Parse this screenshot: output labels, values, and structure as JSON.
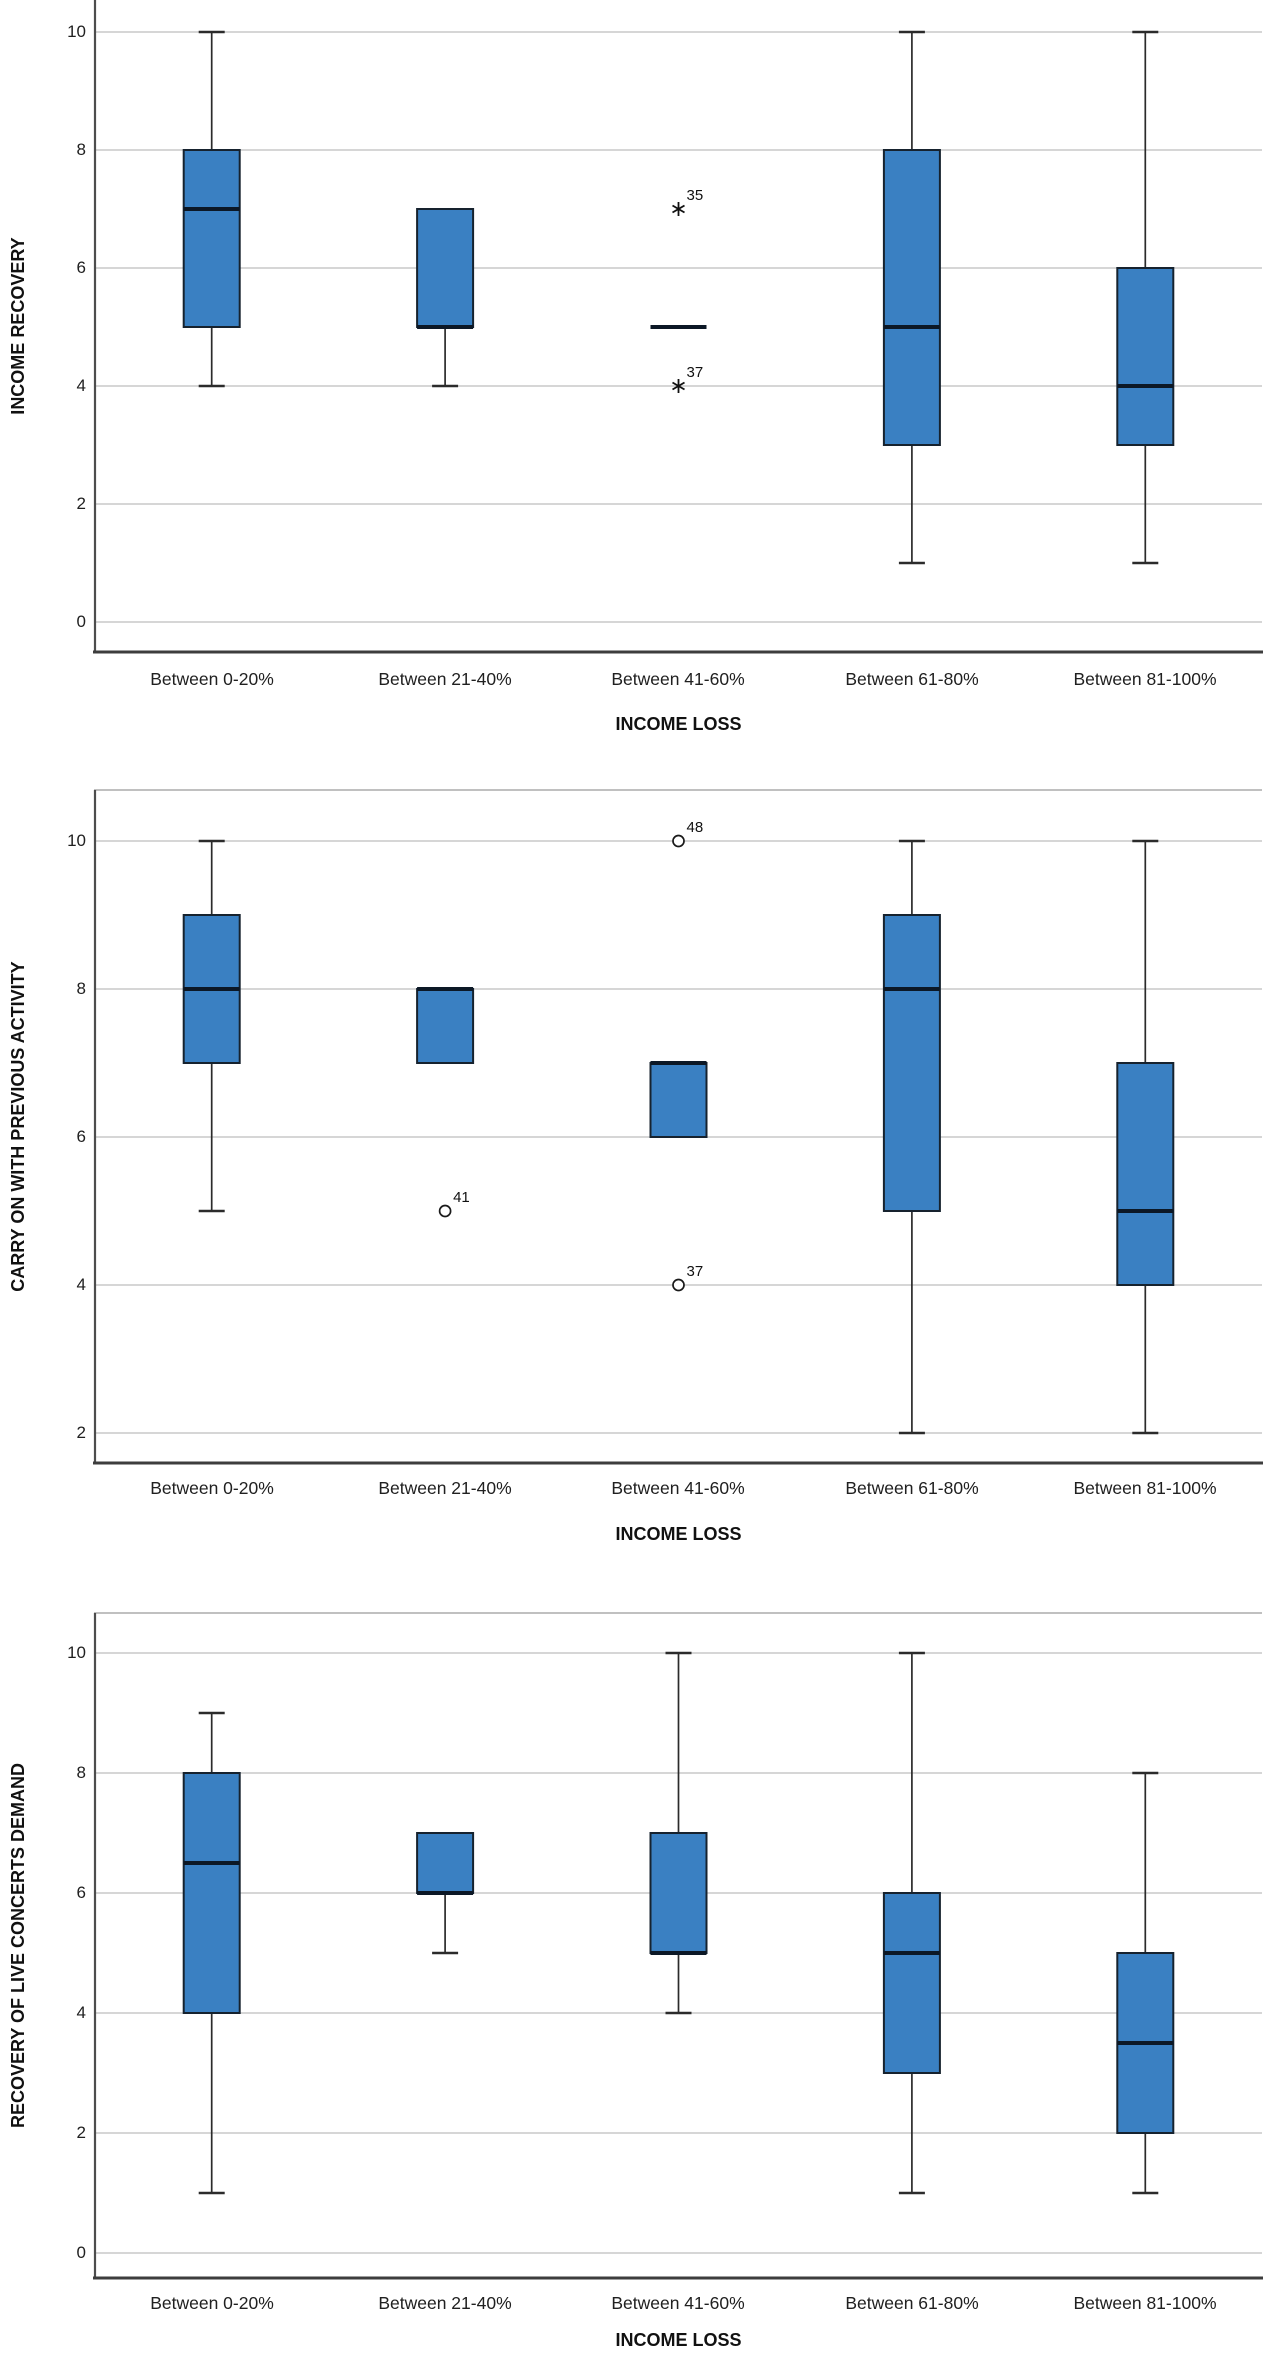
{
  "figure": {
    "description": "Three stacked SPSS-style boxplot charts of survey scores (0-10) grouped by income loss bracket"
  },
  "colors": {
    "box_fill": "#3A80C2",
    "box_border": "#16222E",
    "median": "#0C1826",
    "whisker": "#2B2B2B",
    "gridline": "#C9C9C9",
    "axis": "#4D4D4D",
    "baseline": "#3D3D3D",
    "top_border": "#ABABAB",
    "text": "#1A1A1A"
  },
  "chart_data": [
    {
      "type": "boxplot",
      "title": "",
      "ylabel": "INCOME RECOVERY",
      "xlabel": "INCOME LOSS",
      "categories": [
        "Between 0-20%",
        "Between 21-40%",
        "Between 41-60%",
        "Between 61-80%",
        "Between 81-100%"
      ],
      "yticks": [
        "10",
        "8",
        "6",
        "4",
        "2",
        "0"
      ],
      "ytick_values": [
        10,
        8,
        6,
        4,
        2,
        0
      ],
      "ylim": [
        -0.5,
        10.5
      ],
      "grid": true,
      "legend": "none",
      "boxes": [
        {
          "category": "Between 0-20%",
          "whisker_low": 4,
          "q1": 5,
          "median": 7,
          "q3": 8,
          "whisker_high": 10,
          "outliers": []
        },
        {
          "category": "Between 21-40%",
          "whisker_low": 4,
          "q1": 5,
          "median": 5,
          "q3": 7,
          "whisker_high": null,
          "outliers": []
        },
        {
          "category": "Between 41-60%",
          "whisker_low": null,
          "q1": 5,
          "median": 5,
          "q3": 5,
          "whisker_high": null,
          "outliers": [
            {
              "value": 7,
              "label": "35",
              "marker": "asterisk"
            },
            {
              "value": 4,
              "label": "37",
              "marker": "asterisk"
            }
          ]
        },
        {
          "category": "Between 61-80%",
          "whisker_low": 1,
          "q1": 3,
          "median": 5,
          "q3": 8,
          "whisker_high": 10,
          "outliers": []
        },
        {
          "category": "Between 81-100%",
          "whisker_low": 1,
          "q1": 3,
          "median": 4,
          "q3": 6,
          "whisker_high": 10,
          "outliers": []
        }
      ]
    },
    {
      "type": "boxplot",
      "title": "",
      "ylabel": "CARRY ON WITH PREVIOUS ACTIVITY",
      "xlabel": "INCOME LOSS",
      "categories": [
        "Between 0-20%",
        "Between 21-40%",
        "Between 41-60%",
        "Between 61-80%",
        "Between 81-100%"
      ],
      "yticks": [
        "10",
        "8",
        "6",
        "4",
        "2"
      ],
      "ytick_values": [
        10,
        8,
        6,
        4,
        2
      ],
      "ylim": [
        1.6,
        10.7
      ],
      "grid": true,
      "legend": "none",
      "boxes": [
        {
          "category": "Between 0-20%",
          "whisker_low": 5,
          "q1": 7,
          "median": 8,
          "q3": 9,
          "whisker_high": 10,
          "outliers": []
        },
        {
          "category": "Between 21-40%",
          "whisker_low": null,
          "q1": 7,
          "median": 8,
          "q3": 8,
          "whisker_high": null,
          "outliers": [
            {
              "value": 5,
              "label": "41",
              "marker": "circle"
            }
          ]
        },
        {
          "category": "Between 41-60%",
          "whisker_low": null,
          "q1": 6,
          "median": 7,
          "q3": 7,
          "whisker_high": null,
          "outliers": [
            {
              "value": 10,
              "label": "48",
              "marker": "circle"
            },
            {
              "value": 4,
              "label": "37",
              "marker": "circle"
            }
          ]
        },
        {
          "category": "Between 61-80%",
          "whisker_low": 2,
          "q1": 5,
          "median": 8,
          "q3": 9,
          "whisker_high": 10,
          "outliers": []
        },
        {
          "category": "Between 81-100%",
          "whisker_low": 2,
          "q1": 4,
          "median": 5,
          "q3": 7,
          "whisker_high": 10,
          "outliers": []
        }
      ]
    },
    {
      "type": "boxplot",
      "title": "",
      "ylabel": "RECOVERY OF LIVE CONCERTS DEMAND",
      "xlabel": "INCOME LOSS",
      "categories": [
        "Between 0-20%",
        "Between 21-40%",
        "Between 41-60%",
        "Between 61-80%",
        "Between 81-100%"
      ],
      "yticks": [
        "10",
        "8",
        "6",
        "4",
        "2",
        "0"
      ],
      "ytick_values": [
        10,
        8,
        6,
        4,
        2,
        0
      ],
      "ylim": [
        -0.4,
        10.65
      ],
      "grid": true,
      "legend": "none",
      "boxes": [
        {
          "category": "Between 0-20%",
          "whisker_low": 1,
          "q1": 4,
          "median": 6.5,
          "q3": 8,
          "whisker_high": 9,
          "outliers": []
        },
        {
          "category": "Between 21-40%",
          "whisker_low": 5,
          "q1": 6,
          "median": 6,
          "q3": 7,
          "whisker_high": null,
          "outliers": []
        },
        {
          "category": "Between 41-60%",
          "whisker_low": 4,
          "q1": 5,
          "median": 5,
          "q3": 7,
          "whisker_high": 10,
          "outliers": []
        },
        {
          "category": "Between 61-80%",
          "whisker_low": 1,
          "q1": 3,
          "median": 5,
          "q3": 6,
          "whisker_high": 10,
          "outliers": []
        },
        {
          "category": "Between 81-100%",
          "whisker_low": 1,
          "q1": 2,
          "median": 3.5,
          "q3": 5,
          "whisker_high": 8,
          "outliers": []
        }
      ]
    }
  ]
}
